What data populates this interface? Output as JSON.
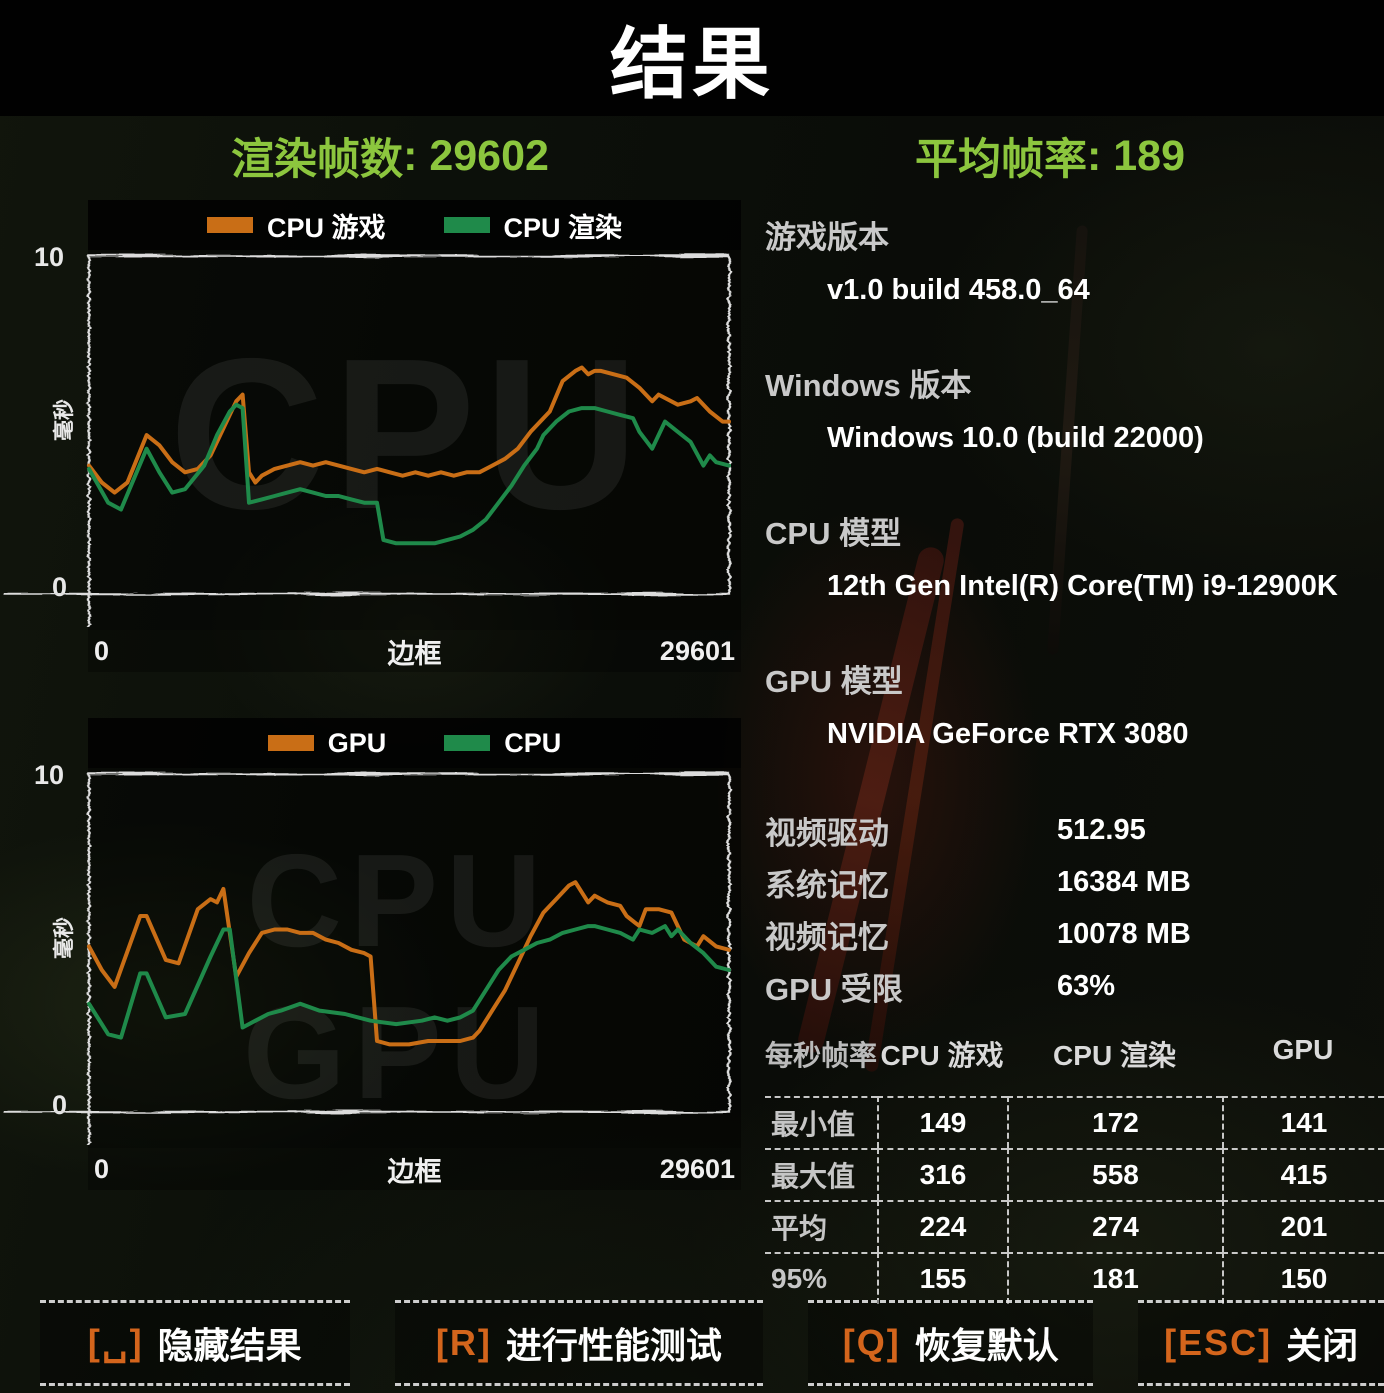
{
  "header": {
    "title": "结果"
  },
  "stats": {
    "frames_label": "渲染帧数",
    "frames_value": "29602",
    "fps_label": "平均帧率",
    "fps_value": "189"
  },
  "colors": {
    "accent_green": "#8cc63e",
    "key_orange": "#d4651c",
    "line_orange": "#c96e16",
    "line_green": "#1f8a4a",
    "swatch_orange": "#c7701d",
    "swatch_green": "#1a6e38"
  },
  "chart_data": [
    {
      "type": "line",
      "title": "CPU frame-time chart",
      "watermark": [
        "CPU"
      ],
      "ylabel": "毫秒",
      "xlabel": "边框",
      "ylim": [
        0,
        10
      ],
      "xlim": [
        0,
        29601
      ],
      "y_top_label": "10",
      "y_bottom_label": "0",
      "x_left_label": "0",
      "x_center_label": "边框",
      "x_right_label": "29601",
      "series": [
        {
          "name": "CPU 游戏",
          "color": "#c96e16",
          "points": [
            [
              0,
              3.8
            ],
            [
              2,
              3.3
            ],
            [
              4,
              3.0
            ],
            [
              6,
              3.3
            ],
            [
              9,
              4.7
            ],
            [
              11,
              4.4
            ],
            [
              13,
              3.9
            ],
            [
              15,
              3.6
            ],
            [
              17,
              3.7
            ],
            [
              19,
              4.1
            ],
            [
              21,
              4.9
            ],
            [
              23,
              5.7
            ],
            [
              24,
              5.9
            ],
            [
              25,
              3.6
            ],
            [
              26,
              3.3
            ],
            [
              27,
              3.5
            ],
            [
              29,
              3.7
            ],
            [
              31,
              3.8
            ],
            [
              33,
              3.9
            ],
            [
              35,
              3.8
            ],
            [
              37,
              3.9
            ],
            [
              39,
              3.8
            ],
            [
              41,
              3.7
            ],
            [
              43,
              3.6
            ],
            [
              45,
              3.7
            ],
            [
              47,
              3.6
            ],
            [
              49,
              3.5
            ],
            [
              51,
              3.6
            ],
            [
              53,
              3.5
            ],
            [
              55,
              3.6
            ],
            [
              57,
              3.5
            ],
            [
              59,
              3.6
            ],
            [
              61,
              3.6
            ],
            [
              63,
              3.8
            ],
            [
              65,
              4.0
            ],
            [
              67,
              4.3
            ],
            [
              69,
              4.8
            ],
            [
              70,
              5.0
            ],
            [
              71,
              5.2
            ],
            [
              72,
              5.4
            ],
            [
              74,
              6.3
            ],
            [
              76,
              6.6
            ],
            [
              77,
              6.7
            ],
            [
              78,
              6.5
            ],
            [
              79,
              6.6
            ],
            [
              80,
              6.6
            ],
            [
              82,
              6.5
            ],
            [
              84,
              6.4
            ],
            [
              86,
              6.1
            ],
            [
              88,
              5.7
            ],
            [
              89,
              5.9
            ],
            [
              90,
              5.8
            ],
            [
              92,
              5.6
            ],
            [
              94,
              5.7
            ],
            [
              95,
              5.8
            ],
            [
              97,
              5.4
            ],
            [
              99,
              5.1
            ],
            [
              100,
              5.1
            ]
          ]
        },
        {
          "name": "CPU 渲染",
          "color": "#1f8a4a",
          "points": [
            [
              0,
              3.7
            ],
            [
              3,
              2.7
            ],
            [
              5,
              2.5
            ],
            [
              9,
              4.3
            ],
            [
              11,
              3.6
            ],
            [
              13,
              3.0
            ],
            [
              15,
              3.1
            ],
            [
              18,
              3.8
            ],
            [
              20,
              4.7
            ],
            [
              22,
              5.4
            ],
            [
              23,
              5.6
            ],
            [
              24,
              5.5
            ],
            [
              25,
              2.7
            ],
            [
              27,
              2.8
            ],
            [
              29,
              2.9
            ],
            [
              31,
              3.0
            ],
            [
              33,
              3.1
            ],
            [
              35,
              3.0
            ],
            [
              37,
              2.9
            ],
            [
              39,
              2.9
            ],
            [
              41,
              2.8
            ],
            [
              43,
              2.7
            ],
            [
              45,
              2.7
            ],
            [
              46,
              1.6
            ],
            [
              48,
              1.5
            ],
            [
              50,
              1.5
            ],
            [
              52,
              1.5
            ],
            [
              54,
              1.5
            ],
            [
              56,
              1.6
            ],
            [
              58,
              1.7
            ],
            [
              60,
              1.9
            ],
            [
              62,
              2.2
            ],
            [
              64,
              2.7
            ],
            [
              66,
              3.2
            ],
            [
              68,
              3.8
            ],
            [
              70,
              4.3
            ],
            [
              71,
              4.7
            ],
            [
              73,
              5.1
            ],
            [
              75,
              5.4
            ],
            [
              77,
              5.5
            ],
            [
              79,
              5.5
            ],
            [
              81,
              5.4
            ],
            [
              83,
              5.3
            ],
            [
              85,
              5.2
            ],
            [
              86,
              4.8
            ],
            [
              88,
              4.3
            ],
            [
              89,
              4.7
            ],
            [
              90,
              5.1
            ],
            [
              92,
              4.8
            ],
            [
              94,
              4.5
            ],
            [
              96,
              3.8
            ],
            [
              97,
              4.1
            ],
            [
              98,
              3.9
            ],
            [
              100,
              3.8
            ]
          ]
        }
      ]
    },
    {
      "type": "line",
      "title": "GPU vs CPU frame-time chart",
      "watermark": [
        "CPU",
        "GPU"
      ],
      "ylabel": "毫秒",
      "xlabel": "边框",
      "ylim": [
        0,
        10
      ],
      "xlim": [
        0,
        29601
      ],
      "y_top_label": "10",
      "y_bottom_label": "0",
      "x_left_label": "0",
      "x_center_label": "边框",
      "x_right_label": "29601",
      "series": [
        {
          "name": "GPU",
          "color": "#c96e16",
          "points": [
            [
              0,
              4.9
            ],
            [
              2,
              4.2
            ],
            [
              4,
              3.7
            ],
            [
              8,
              5.8
            ],
            [
              9,
              5.8
            ],
            [
              12,
              4.5
            ],
            [
              14,
              4.4
            ],
            [
              17,
              6.0
            ],
            [
              19,
              6.3
            ],
            [
              20,
              6.2
            ],
            [
              21,
              6.6
            ],
            [
              23,
              4.0
            ],
            [
              25,
              4.7
            ],
            [
              27,
              5.3
            ],
            [
              29,
              5.4
            ],
            [
              31,
              5.4
            ],
            [
              33,
              5.3
            ],
            [
              35,
              5.3
            ],
            [
              37,
              5.1
            ],
            [
              39,
              5.0
            ],
            [
              41,
              4.8
            ],
            [
              43,
              4.7
            ],
            [
              44,
              4.6
            ],
            [
              45,
              2.1
            ],
            [
              47,
              2.0
            ],
            [
              50,
              2.0
            ],
            [
              53,
              2.1
            ],
            [
              56,
              2.1
            ],
            [
              58,
              2.1
            ],
            [
              60,
              2.2
            ],
            [
              61,
              2.4
            ],
            [
              63,
              3.0
            ],
            [
              65,
              3.6
            ],
            [
              67,
              4.4
            ],
            [
              69,
              5.2
            ],
            [
              71,
              5.9
            ],
            [
              73,
              6.3
            ],
            [
              75,
              6.7
            ],
            [
              76,
              6.8
            ],
            [
              77,
              6.5
            ],
            [
              78,
              6.2
            ],
            [
              79,
              6.4
            ],
            [
              80,
              6.3
            ],
            [
              81,
              6.2
            ],
            [
              83,
              6.1
            ],
            [
              84,
              5.8
            ],
            [
              86,
              5.5
            ],
            [
              87,
              6.0
            ],
            [
              89,
              6.0
            ],
            [
              91,
              5.9
            ],
            [
              93,
              5.1
            ],
            [
              95,
              4.9
            ],
            [
              96,
              5.2
            ],
            [
              98,
              4.9
            ],
            [
              100,
              4.8
            ]
          ]
        },
        {
          "name": "CPU",
          "color": "#1f8a4a",
          "points": [
            [
              0,
              3.2
            ],
            [
              3,
              2.3
            ],
            [
              5,
              2.2
            ],
            [
              8,
              4.1
            ],
            [
              9,
              4.1
            ],
            [
              12,
              2.8
            ],
            [
              15,
              2.9
            ],
            [
              19,
              4.6
            ],
            [
              21,
              5.4
            ],
            [
              22,
              5.4
            ],
            [
              24,
              2.5
            ],
            [
              26,
              2.7
            ],
            [
              28,
              2.9
            ],
            [
              30,
              3.0
            ],
            [
              33,
              3.2
            ],
            [
              36,
              3.0
            ],
            [
              40,
              2.9
            ],
            [
              44,
              2.7
            ],
            [
              48,
              2.6
            ],
            [
              52,
              2.7
            ],
            [
              54,
              2.8
            ],
            [
              56,
              2.7
            ],
            [
              58,
              2.8
            ],
            [
              60,
              3.0
            ],
            [
              62,
              3.6
            ],
            [
              63,
              3.9
            ],
            [
              64,
              4.2
            ],
            [
              65,
              4.4
            ],
            [
              66,
              4.6
            ],
            [
              67,
              4.7
            ],
            [
              68,
              4.8
            ],
            [
              70,
              5.0
            ],
            [
              72,
              5.1
            ],
            [
              74,
              5.3
            ],
            [
              76,
              5.4
            ],
            [
              78,
              5.5
            ],
            [
              79,
              5.5
            ],
            [
              81,
              5.4
            ],
            [
              83,
              5.3
            ],
            [
              85,
              5.1
            ],
            [
              86,
              5.4
            ],
            [
              88,
              5.3
            ],
            [
              90,
              5.5
            ],
            [
              91,
              5.2
            ],
            [
              92,
              5.4
            ],
            [
              94,
              5.0
            ],
            [
              96,
              4.7
            ],
            [
              98,
              4.3
            ],
            [
              100,
              4.2
            ]
          ]
        }
      ]
    }
  ],
  "info_sections": [
    {
      "label": "游戏版本",
      "value": "v1.0 build 458.0_64"
    },
    {
      "label": "Windows 版本",
      "value": "Windows 10.0 (build 22000)"
    },
    {
      "label": "CPU 模型",
      "value": "12th Gen Intel(R) Core(TM) i9-12900K"
    },
    {
      "label": "GPU 模型",
      "value": "NVIDIA GeForce RTX 3080"
    }
  ],
  "kv": [
    {
      "label": "视频驱动",
      "value": "512.95"
    },
    {
      "label": "系统记忆",
      "value": "16384 MB"
    },
    {
      "label": "视频记忆",
      "value": "10078 MB"
    },
    {
      "label": "GPU 受限",
      "value": "63%"
    }
  ],
  "table": {
    "corner": "每秒帧率",
    "columns": [
      "CPU 游戏",
      "CPU 渲染",
      "GPU"
    ],
    "rows": [
      {
        "label": "最小值",
        "values": [
          "149",
          "172",
          "141"
        ]
      },
      {
        "label": "最大值",
        "values": [
          "316",
          "558",
          "415"
        ]
      },
      {
        "label": "平均",
        "values": [
          "224",
          "274",
          "201"
        ]
      },
      {
        "label": "95%",
        "values": [
          "155",
          "181",
          "150"
        ]
      }
    ]
  },
  "actions": [
    {
      "key": "[␣]",
      "label": "隐藏结果"
    },
    {
      "key": "[R]",
      "label": "进行性能测试"
    },
    {
      "key": "[Q]",
      "label": "恢复默认"
    },
    {
      "key": "[ESC]",
      "label": "关闭"
    }
  ]
}
